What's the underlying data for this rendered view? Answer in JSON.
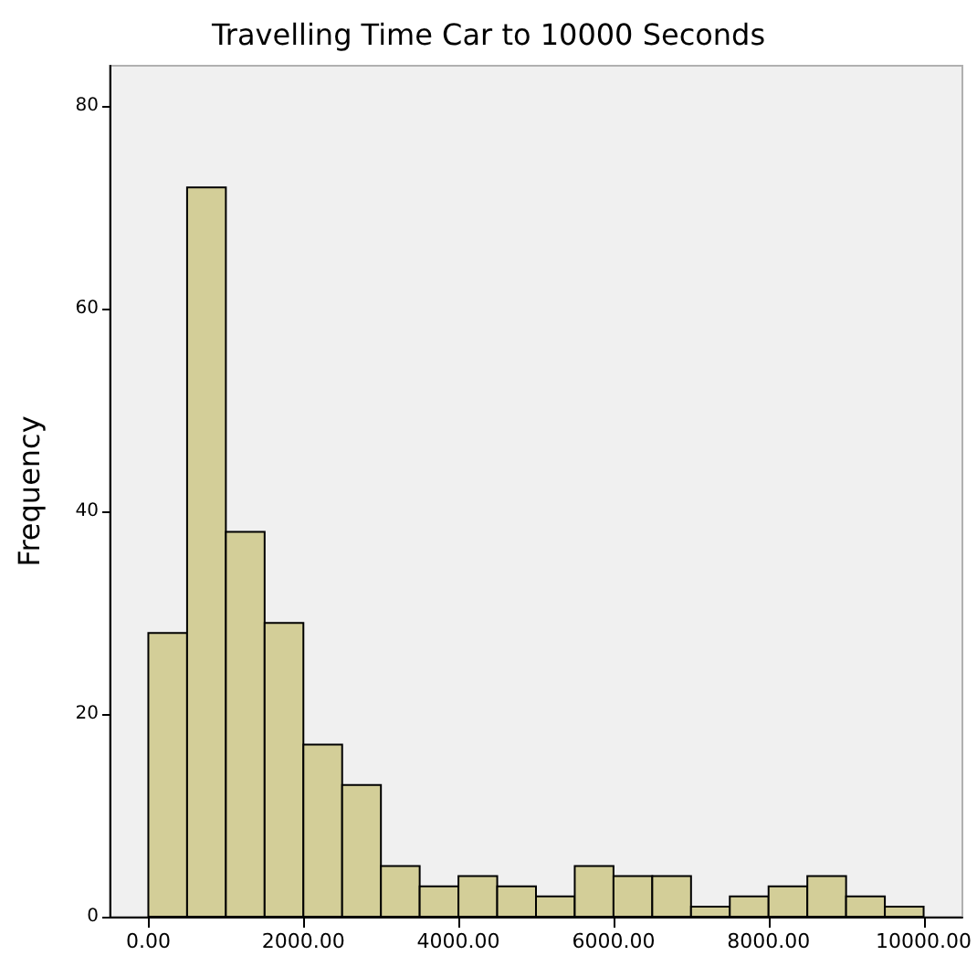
{
  "chart_data": {
    "type": "histogram",
    "title": "Travelling Time Car to 10000 Seconds",
    "ylabel": "Frequency",
    "bins": [
      0,
      500,
      1000,
      1500,
      2000,
      2500,
      3000,
      3500,
      4000,
      4500,
      5000,
      5500,
      6000,
      6500,
      7000,
      7500,
      8000,
      8500,
      9000,
      9500,
      10000
    ],
    "values": [
      28,
      72,
      38,
      29,
      17,
      13,
      5,
      3,
      4,
      3,
      2,
      5,
      4,
      4,
      1,
      2,
      3,
      4,
      2,
      1
    ],
    "color": "#d3ce98",
    "xlim": [
      -500,
      10500
    ],
    "xticks": [
      {
        "value": 0,
        "label": "0.00"
      },
      {
        "value": 2000,
        "label": "2000.00"
      },
      {
        "value": 4000,
        "label": "4000.00"
      },
      {
        "value": 6000,
        "label": "6000.00"
      },
      {
        "value": 8000,
        "label": "8000.00"
      },
      {
        "value": 10000,
        "label": "10000.00"
      }
    ],
    "ylim": [
      0,
      84
    ],
    "yticks": [
      0,
      20,
      40,
      60,
      80
    ],
    "grid": false,
    "legend": false
  }
}
